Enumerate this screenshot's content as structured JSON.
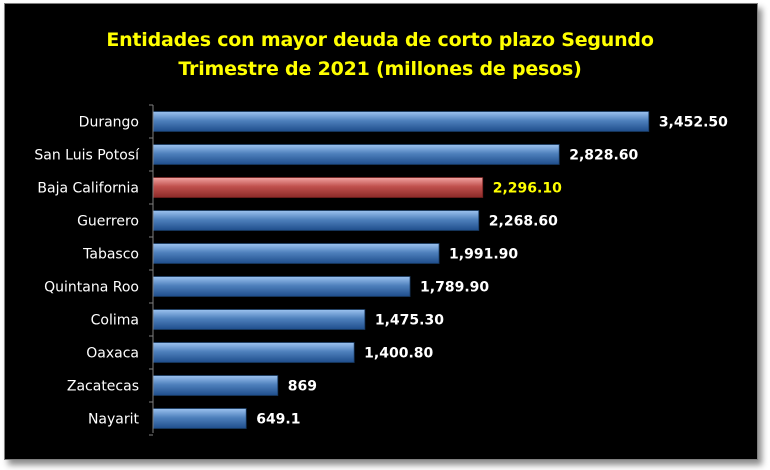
{
  "chart_data": {
    "type": "bar",
    "orientation": "horizontal",
    "title_lines": [
      "Entidades con mayor deuda de corto plazo Segundo",
      "Trimestre de 2021 (millones de pesos)"
    ],
    "categories": [
      "Durango",
      "San Luis Potosí",
      "Baja California",
      "Guerrero",
      "Tabasco",
      "Quintana Roo",
      "Colima",
      "Oaxaca",
      "Zacatecas",
      "Nayarit"
    ],
    "values": [
      3452.5,
      2828.6,
      2296.1,
      2268.6,
      1991.9,
      1789.9,
      1475.3,
      1400.8,
      869,
      649.1
    ],
    "value_labels": [
      "3,452.50",
      "2,828.60",
      "2,296.10",
      "2,268.60",
      "1,991.90",
      "1,789.90",
      "1,475.30",
      "1,400.80",
      "869",
      "649.1"
    ],
    "highlight_index": 2,
    "xlim": [
      0,
      3600
    ],
    "grid": false,
    "legend": "none",
    "colors": {
      "background": "#000000",
      "bar": "#4f81bd",
      "bar_highlight": "#c0504d",
      "title": "#ffff00",
      "highlight_label": "#ffff00",
      "text": "#ffffff"
    }
  }
}
